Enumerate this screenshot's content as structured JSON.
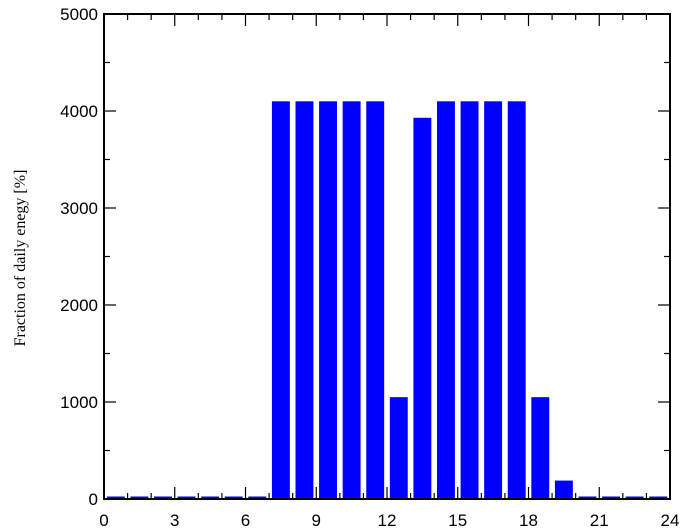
{
  "chart_data": {
    "type": "bar",
    "title": "",
    "xlabel": "",
    "ylabel": "Fraction of daily enegy [%]",
    "xlim": [
      0,
      24
    ],
    "ylim": [
      0,
      5000
    ],
    "xticks": [
      0,
      3,
      6,
      9,
      12,
      15,
      18,
      21,
      24
    ],
    "yticks": [
      0,
      1000,
      2000,
      3000,
      4000,
      5000
    ],
    "x": [
      0.5,
      1.5,
      2.5,
      3.5,
      4.5,
      5.5,
      6.5,
      7.5,
      8.5,
      9.5,
      10.5,
      11.5,
      12.5,
      13.5,
      14.5,
      15.5,
      16.5,
      17.5,
      18.5,
      19.5,
      20.5,
      21.5,
      22.5,
      23.5
    ],
    "values": [
      0,
      0,
      0,
      0,
      0,
      0,
      0,
      4100,
      4100,
      4100,
      4100,
      4100,
      1050,
      3930,
      4100,
      4100,
      4100,
      4100,
      1050,
      190,
      0,
      0,
      0,
      0
    ],
    "bar_color": "#0000ff",
    "grid": false
  }
}
